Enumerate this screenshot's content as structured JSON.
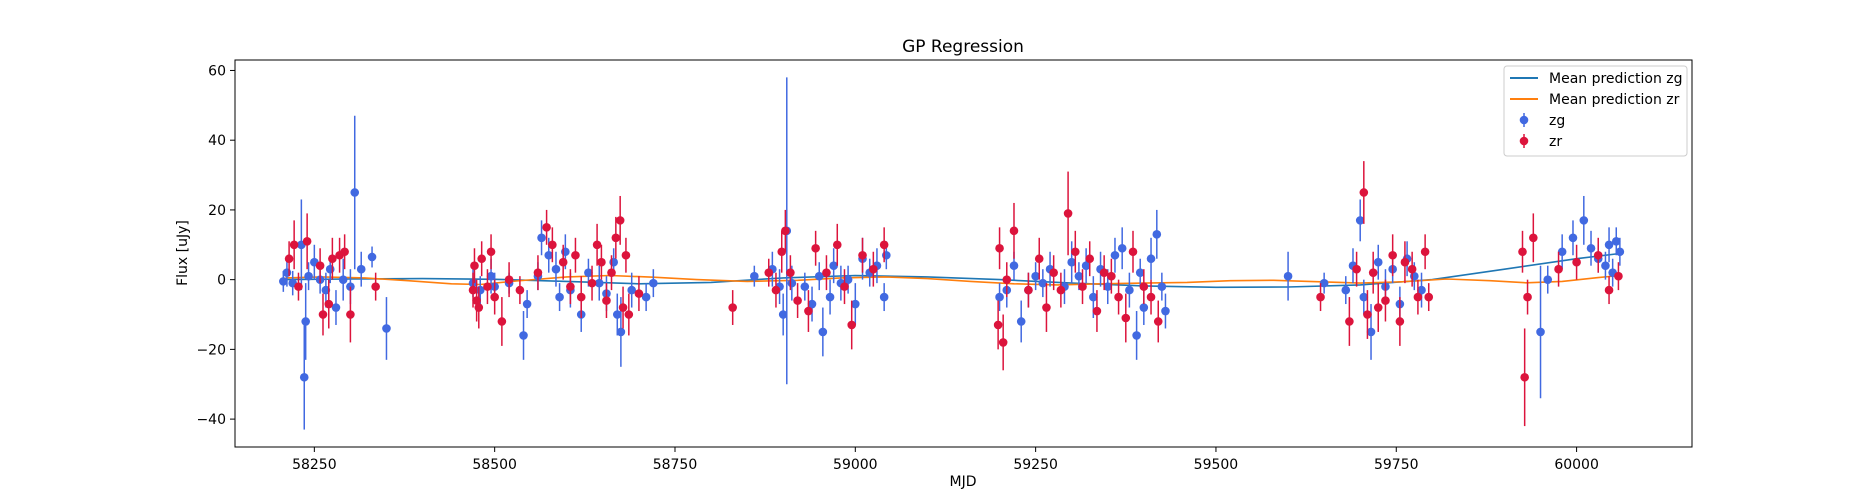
{
  "chart_data": {
    "type": "scatter",
    "title": "GP Regression",
    "xlabel": "MJD",
    "ylabel": "Flux [uJy]",
    "xlim": [
      58140,
      60160
    ],
    "ylim": [
      -48,
      63
    ],
    "grid": false,
    "legend_position": "top-right",
    "x_ticks": [
      58250,
      58500,
      58750,
      59000,
      59250,
      59500,
      59750,
      60000
    ],
    "y_ticks": [
      -40,
      -20,
      0,
      20,
      40,
      60
    ],
    "lines": [
      {
        "name": "Mean prediction zg",
        "color": "#1f77b4",
        "x": [
          58210,
          58300,
          58400,
          58500,
          58600,
          58700,
          58800,
          58900,
          59000,
          59100,
          59200,
          59300,
          59400,
          59500,
          59600,
          59700,
          59800,
          59900,
          60000,
          60060
        ],
        "y": [
          0,
          0.2,
          0.3,
          0.1,
          -0.5,
          -1.2,
          -0.8,
          0.5,
          1.2,
          0.8,
          0,
          -1,
          -1.8,
          -2.2,
          -2.1,
          -1.5,
          0,
          3,
          6,
          7.5
        ]
      },
      {
        "name": "Mean prediction zr",
        "color": "#ff7f0e",
        "x": [
          58210,
          58260,
          58320,
          58380,
          58440,
          58480,
          58530,
          58600,
          58660,
          58720,
          58780,
          58850,
          58920,
          58980,
          59040,
          59100,
          59160,
          59220,
          59280,
          59340,
          59400,
          59460,
          59520,
          59580,
          59640,
          59700,
          59760,
          59820,
          59880,
          59930,
          59980,
          60030,
          60060
        ],
        "y": [
          0.5,
          0.8,
          0.5,
          -0.3,
          -1.2,
          -1.4,
          -0.4,
          0.8,
          1.2,
          0.7,
          0,
          -0.5,
          -0.2,
          0.5,
          0.8,
          0.3,
          -0.5,
          -1.2,
          -1.5,
          -1.2,
          -1.0,
          -0.8,
          -0.3,
          -0.2,
          -0.6,
          -1.0,
          -0.6,
          0.2,
          -0.3,
          -0.9,
          -0.5,
          0.6,
          1.2
        ]
      }
    ],
    "series": [
      {
        "name": "zg",
        "color": "#4169e1",
        "points": [
          [
            58207,
            -0.5,
            3
          ],
          [
            58212,
            2,
            4
          ],
          [
            58220,
            -1,
            3.5
          ],
          [
            58232,
            10,
            13
          ],
          [
            58236,
            -28,
            15
          ],
          [
            58238,
            -12,
            11
          ],
          [
            58242,
            1,
            4
          ],
          [
            58250,
            5,
            5
          ],
          [
            58258,
            0,
            4
          ],
          [
            58266,
            -3,
            5
          ],
          [
            58272,
            3,
            4
          ],
          [
            58280,
            -8,
            5
          ],
          [
            58290,
            0,
            6
          ],
          [
            58300,
            -2,
            5
          ],
          [
            58306,
            25,
            22
          ],
          [
            58315,
            3,
            5
          ],
          [
            58330,
            6.5,
            3
          ],
          [
            58350,
            -14,
            9
          ],
          [
            58470,
            -1,
            4
          ],
          [
            58480,
            -3,
            4
          ],
          [
            58495,
            1,
            5
          ],
          [
            58500,
            -2,
            4
          ],
          [
            58520,
            -1,
            3
          ],
          [
            58540,
            -16,
            7
          ],
          [
            58545,
            -7,
            4
          ],
          [
            58560,
            1,
            4
          ],
          [
            58565,
            12,
            5
          ],
          [
            58575,
            7,
            5
          ],
          [
            58585,
            3,
            5
          ],
          [
            58590,
            -5,
            4
          ],
          [
            58598,
            8,
            5
          ],
          [
            58605,
            -3,
            5
          ],
          [
            58620,
            -10,
            5
          ],
          [
            58630,
            2,
            4
          ],
          [
            58645,
            -1,
            5
          ],
          [
            58655,
            -4,
            5
          ],
          [
            58665,
            5,
            4
          ],
          [
            58670,
            -10,
            6
          ],
          [
            58675,
            -15,
            10
          ],
          [
            58690,
            -3,
            5
          ],
          [
            58710,
            -5,
            4
          ],
          [
            58720,
            -1,
            4
          ],
          [
            58860,
            1,
            3
          ],
          [
            58885,
            3,
            5
          ],
          [
            58895,
            -2,
            5
          ],
          [
            58900,
            -10,
            6
          ],
          [
            58905,
            14,
            44
          ],
          [
            58912,
            -1,
            5
          ],
          [
            58930,
            -2,
            4
          ],
          [
            58940,
            -7,
            5
          ],
          [
            58950,
            1,
            4
          ],
          [
            58955,
            -15,
            7
          ],
          [
            58965,
            -5,
            5
          ],
          [
            58970,
            4,
            5
          ],
          [
            58980,
            -1,
            5
          ],
          [
            58990,
            0,
            4
          ],
          [
            59000,
            -7,
            6
          ],
          [
            59010,
            6,
            6
          ],
          [
            59020,
            2,
            4
          ],
          [
            59030,
            4,
            5
          ],
          [
            59040,
            -5,
            4
          ],
          [
            59043,
            7,
            4
          ],
          [
            59200,
            -5,
            4
          ],
          [
            59210,
            -3,
            5
          ],
          [
            59220,
            4,
            4
          ],
          [
            59230,
            -12,
            6
          ],
          [
            59240,
            -3,
            5
          ],
          [
            59250,
            1,
            4
          ],
          [
            59260,
            -1,
            4
          ],
          [
            59270,
            3,
            5
          ],
          [
            59290,
            -2,
            5
          ],
          [
            59300,
            5,
            6
          ],
          [
            59310,
            1,
            4
          ],
          [
            59320,
            4,
            5
          ],
          [
            59330,
            -5,
            6
          ],
          [
            59340,
            3,
            5
          ],
          [
            59350,
            -2,
            5
          ],
          [
            59360,
            7,
            5
          ],
          [
            59370,
            9,
            6
          ],
          [
            59380,
            -3,
            5
          ],
          [
            59390,
            -16,
            7
          ],
          [
            59395,
            2,
            4
          ],
          [
            59400,
            -8,
            5
          ],
          [
            59410,
            6,
            6
          ],
          [
            59418,
            13,
            7
          ],
          [
            59425,
            -2,
            4
          ],
          [
            59430,
            -9,
            5
          ],
          [
            59600,
            1,
            7
          ],
          [
            59650,
            -1,
            3
          ],
          [
            59680,
            -3,
            4
          ],
          [
            59690,
            4,
            5
          ],
          [
            59700,
            17,
            6
          ],
          [
            59705,
            -5,
            5
          ],
          [
            59715,
            -15,
            8
          ],
          [
            59725,
            5,
            5
          ],
          [
            59735,
            -2,
            5
          ],
          [
            59745,
            3,
            4
          ],
          [
            59755,
            -7,
            5
          ],
          [
            59765,
            6,
            5
          ],
          [
            59775,
            1,
            4
          ],
          [
            59785,
            -3,
            5
          ],
          [
            59950,
            -15,
            19
          ],
          [
            59960,
            0,
            4
          ],
          [
            59980,
            8,
            5
          ],
          [
            59995,
            12,
            5
          ],
          [
            60010,
            17,
            7
          ],
          [
            60020,
            9,
            5
          ],
          [
            60030,
            6,
            4
          ],
          [
            60040,
            4,
            4
          ],
          [
            60045,
            10,
            5
          ],
          [
            60050,
            2,
            4
          ],
          [
            60055,
            11,
            4
          ],
          [
            60060,
            8,
            4
          ]
        ]
      },
      {
        "name": "zr",
        "color": "#dc143c",
        "points": [
          [
            58215,
            6,
            5
          ],
          [
            58222,
            10,
            7
          ],
          [
            58228,
            -2,
            4
          ],
          [
            58240,
            11,
            8
          ],
          [
            58258,
            4,
            5
          ],
          [
            58262,
            -10,
            6
          ],
          [
            58270,
            -7,
            7
          ],
          [
            58275,
            6,
            6
          ],
          [
            58285,
            7,
            5
          ],
          [
            58292,
            8,
            5
          ],
          [
            58300,
            -10,
            8
          ],
          [
            58335,
            -2,
            4
          ],
          [
            58470,
            -3,
            5
          ],
          [
            58472,
            4,
            5
          ],
          [
            58475,
            -6,
            6
          ],
          [
            58478,
            -8,
            6
          ],
          [
            58482,
            6,
            5
          ],
          [
            58490,
            -2,
            5
          ],
          [
            58495,
            8,
            5
          ],
          [
            58500,
            -5,
            5
          ],
          [
            58510,
            -12,
            7
          ],
          [
            58520,
            0,
            5
          ],
          [
            58535,
            -3,
            4
          ],
          [
            58560,
            2,
            5
          ],
          [
            58572,
            15,
            5
          ],
          [
            58580,
            10,
            5
          ],
          [
            58595,
            5,
            5
          ],
          [
            58605,
            -2,
            5
          ],
          [
            58612,
            7,
            5
          ],
          [
            58620,
            -5,
            6
          ],
          [
            58635,
            -1,
            5
          ],
          [
            58642,
            10,
            6
          ],
          [
            58648,
            5,
            5
          ],
          [
            58655,
            -6,
            5
          ],
          [
            58662,
            2,
            5
          ],
          [
            58668,
            12,
            6
          ],
          [
            58674,
            17,
            7
          ],
          [
            58678,
            -8,
            6
          ],
          [
            58682,
            7,
            5
          ],
          [
            58686,
            -10,
            6
          ],
          [
            58700,
            -4,
            5
          ],
          [
            58830,
            -8,
            5
          ],
          [
            58880,
            2,
            4
          ],
          [
            58890,
            -3,
            5
          ],
          [
            58898,
            8,
            6
          ],
          [
            58903,
            14,
            6
          ],
          [
            58910,
            2,
            5
          ],
          [
            58920,
            -6,
            5
          ],
          [
            58935,
            -9,
            6
          ],
          [
            58945,
            9,
            5
          ],
          [
            58960,
            2,
            5
          ],
          [
            58975,
            10,
            6
          ],
          [
            58985,
            -2,
            5
          ],
          [
            58995,
            -13,
            7
          ],
          [
            59010,
            7,
            5
          ],
          [
            59025,
            3,
            5
          ],
          [
            59040,
            10,
            5
          ],
          [
            59198,
            -13,
            7
          ],
          [
            59200,
            9,
            6
          ],
          [
            59205,
            -18,
            8
          ],
          [
            59210,
            0,
            5
          ],
          [
            59220,
            14,
            8
          ],
          [
            59240,
            -3,
            5
          ],
          [
            59255,
            6,
            6
          ],
          [
            59265,
            -8,
            7
          ],
          [
            59275,
            2,
            5
          ],
          [
            59285,
            -3,
            5
          ],
          [
            59295,
            19,
            12
          ],
          [
            59305,
            8,
            6
          ],
          [
            59315,
            -2,
            5
          ],
          [
            59325,
            6,
            5
          ],
          [
            59335,
            -9,
            6
          ],
          [
            59345,
            2,
            5
          ],
          [
            59355,
            1,
            5
          ],
          [
            59365,
            -5,
            5
          ],
          [
            59375,
            -11,
            7
          ],
          [
            59385,
            8,
            6
          ],
          [
            59400,
            -2,
            5
          ],
          [
            59410,
            -5,
            5
          ],
          [
            59420,
            -12,
            6
          ],
          [
            59645,
            -5,
            4
          ],
          [
            59685,
            -12,
            7
          ],
          [
            59695,
            3,
            5
          ],
          [
            59705,
            25,
            9
          ],
          [
            59710,
            -10,
            7
          ],
          [
            59718,
            2,
            6
          ],
          [
            59725,
            -8,
            7
          ],
          [
            59735,
            -6,
            6
          ],
          [
            59745,
            7,
            6
          ],
          [
            59755,
            -12,
            7
          ],
          [
            59762,
            5,
            6
          ],
          [
            59772,
            3,
            5
          ],
          [
            59780,
            -5,
            5
          ],
          [
            59790,
            8,
            5
          ],
          [
            59795,
            -5,
            4
          ],
          [
            59925,
            8,
            6
          ],
          [
            59928,
            -28,
            14
          ],
          [
            59932,
            -5,
            5
          ],
          [
            59940,
            12,
            7
          ],
          [
            59975,
            3,
            5
          ],
          [
            60000,
            5,
            5
          ],
          [
            60030,
            7,
            5
          ],
          [
            60045,
            -3,
            4
          ],
          [
            60058,
            1,
            4
          ]
        ]
      }
    ]
  }
}
